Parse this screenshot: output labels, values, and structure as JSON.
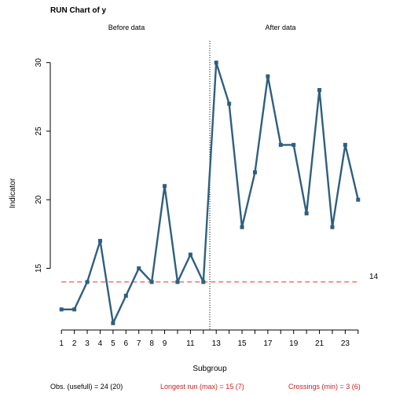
{
  "chart_data": {
    "type": "line",
    "title": "RUN Chart of y",
    "xlabel": "Subgroup",
    "ylabel": "Indicator",
    "x": [
      1,
      2,
      3,
      4,
      5,
      6,
      7,
      8,
      9,
      10,
      11,
      12,
      13,
      14,
      15,
      16,
      17,
      18,
      19,
      20,
      21,
      22,
      23,
      24
    ],
    "values": [
      12,
      12,
      14,
      17,
      11,
      13,
      15,
      14,
      21,
      14,
      16,
      14,
      30,
      27,
      18,
      22,
      29,
      24,
      24,
      19,
      28,
      18,
      24,
      20
    ],
    "xlim": [
      0.5,
      24.5
    ],
    "ylim": [
      10.5,
      31.7
    ],
    "x_ticks": [
      1,
      2,
      3,
      4,
      5,
      6,
      7,
      8,
      9,
      11,
      13,
      15,
      17,
      19,
      21,
      23
    ],
    "y_ticks": [
      15,
      20,
      25,
      30
    ],
    "center_line": 14,
    "center_label": "14",
    "split_after": 12,
    "phase_labels": [
      "Before data",
      "After data"
    ],
    "line_color": "#2f5f7f",
    "center_color": "#dd3333",
    "footer": {
      "obs": "Obs. (usefull) = 24 (20)",
      "longest_run": "Longest run (max) = 15 (7)",
      "crossings": "Crossings (min) = 3 (6)"
    }
  }
}
